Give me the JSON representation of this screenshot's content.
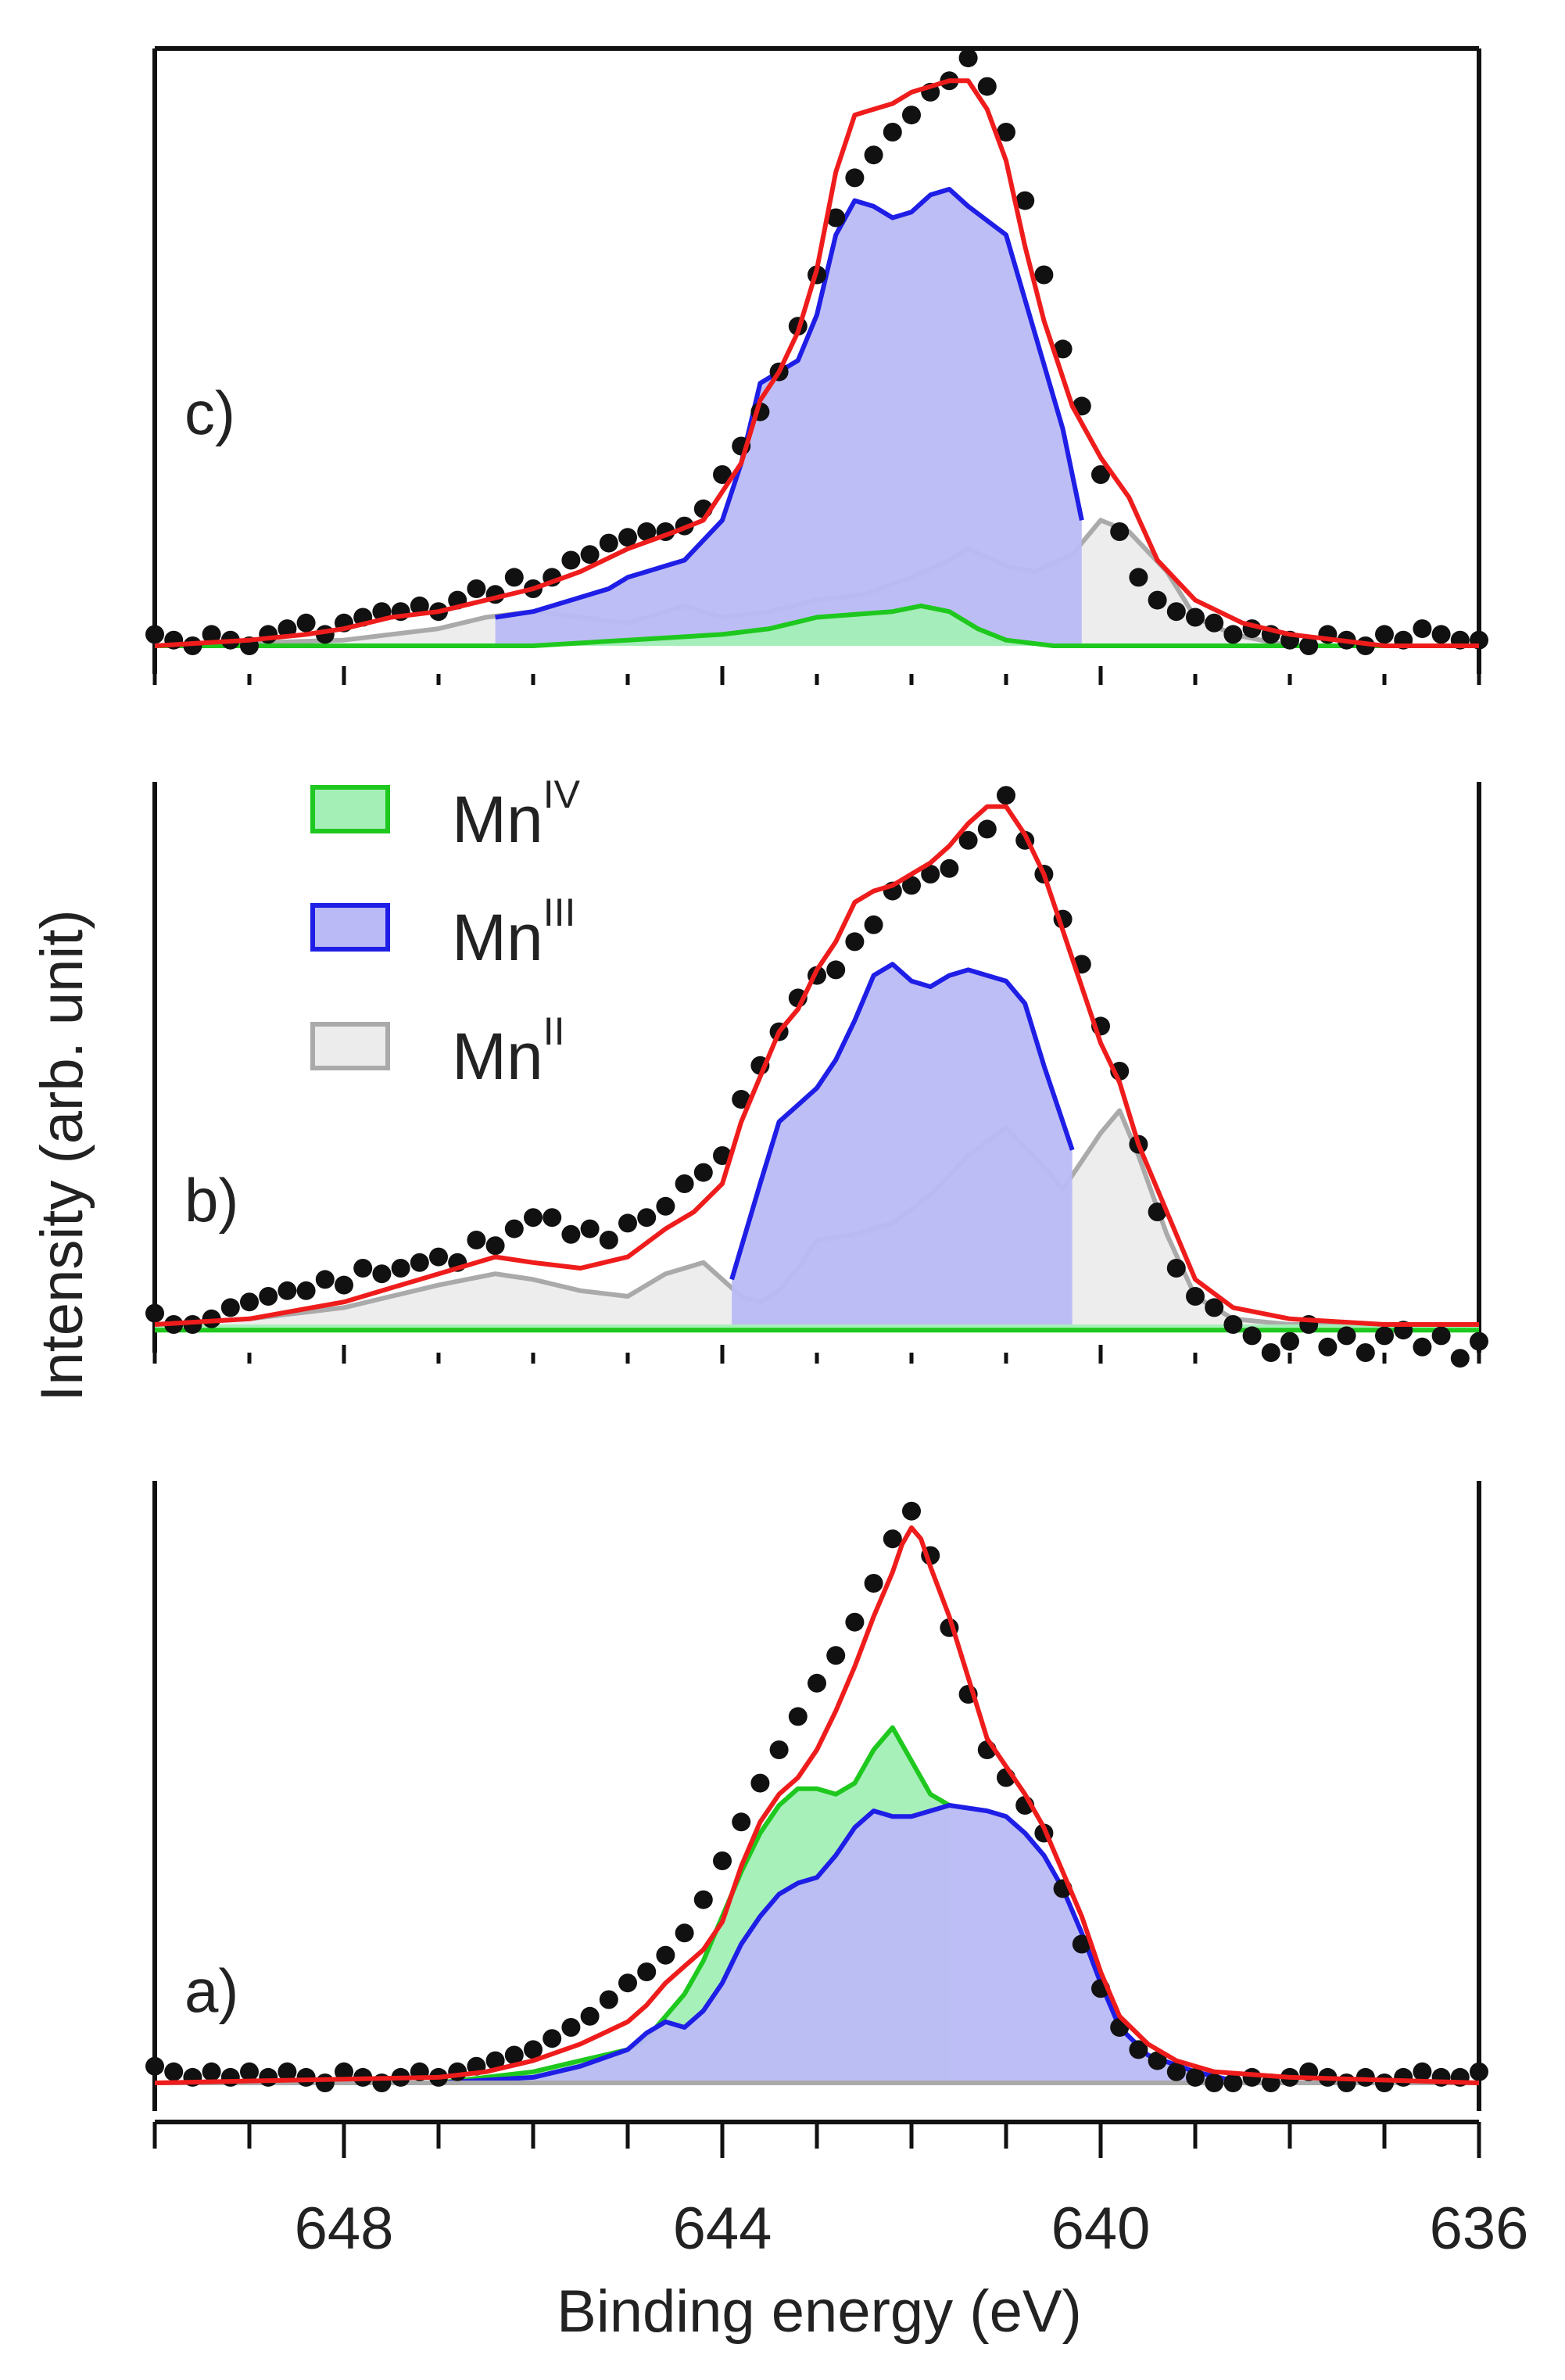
{
  "figure": {
    "ylabel": "Intensity (arb. unit)",
    "xlabel": "Binding energy (eV)"
  },
  "legend": {
    "placement": "upper-left of panel b",
    "items": [
      {
        "label": "Mn",
        "sup": "IV",
        "fill": "#a3efb6",
        "stroke": "#1ec81e"
      },
      {
        "label": "Mn",
        "sup": "III",
        "fill": "#babbf6",
        "stroke": "#1e1ee6"
      },
      {
        "label": "Mn",
        "sup": "II",
        "fill": "#ececec",
        "stroke": "#aaaaaa"
      }
    ]
  },
  "colors": {
    "data_points": "#111111",
    "fit": "#ef1c1c",
    "axis": "#111111"
  },
  "chart_data": [
    {
      "type": "line",
      "panel": "c)",
      "xlim": [
        650,
        636
      ],
      "ylim": [
        0,
        1.05
      ],
      "x_tick_values": [
        648,
        644,
        640,
        636
      ],
      "x_minor_step": 1,
      "data_points_x": [
        650.0,
        649.8,
        649.6,
        649.4,
        649.2,
        649.0,
        648.8,
        648.6,
        648.4,
        648.2,
        648.0,
        647.8,
        647.6,
        647.4,
        647.2,
        647.0,
        646.8,
        646.6,
        646.4,
        646.2,
        646.0,
        645.8,
        645.6,
        645.4,
        645.2,
        645.0,
        644.8,
        644.6,
        644.4,
        644.2,
        644.0,
        643.8,
        643.6,
        643.4,
        643.2,
        643.0,
        642.8,
        642.6,
        642.4,
        642.2,
        642.0,
        641.8,
        641.6,
        641.4,
        641.2,
        641.0,
        640.8,
        640.6,
        640.4,
        640.2,
        640.0,
        639.8,
        639.6,
        639.4,
        639.2,
        639.0,
        638.8,
        638.6,
        638.4,
        638.2,
        638.0,
        637.8,
        637.6,
        637.4,
        637.2,
        637.0,
        636.8,
        636.6,
        636.4,
        636.2,
        636.0
      ],
      "data_points_y": [
        0.02,
        0.01,
        0.0,
        0.02,
        0.01,
        0.0,
        0.02,
        0.03,
        0.04,
        0.02,
        0.04,
        0.05,
        0.06,
        0.06,
        0.07,
        0.06,
        0.08,
        0.1,
        0.09,
        0.12,
        0.1,
        0.12,
        0.15,
        0.16,
        0.18,
        0.19,
        0.2,
        0.2,
        0.21,
        0.24,
        0.3,
        0.35,
        0.41,
        0.48,
        0.56,
        0.65,
        0.75,
        0.82,
        0.86,
        0.9,
        0.93,
        0.97,
        0.99,
        1.03,
        0.98,
        0.9,
        0.78,
        0.65,
        0.52,
        0.42,
        0.3,
        0.2,
        0.12,
        0.08,
        0.06,
        0.05,
        0.04,
        0.02,
        0.03,
        0.02,
        0.01,
        0.0,
        0.02,
        0.01,
        0.0,
        0.02,
        0.01,
        0.03,
        0.02,
        0.01,
        0.01
      ],
      "series": [
        {
          "name": "Mn II",
          "x": [
            650,
            648,
            647,
            646.5,
            646,
            645.5,
            645,
            644.6,
            644.4,
            644,
            643.5,
            643,
            642.5,
            642,
            641.6,
            641.4,
            641,
            640.7,
            640.3,
            640,
            639.7,
            639.3,
            639,
            638.6,
            638,
            636
          ],
          "y": [
            0.0,
            0.01,
            0.03,
            0.05,
            0.06,
            0.05,
            0.04,
            0.06,
            0.07,
            0.05,
            0.06,
            0.08,
            0.09,
            0.12,
            0.15,
            0.17,
            0.14,
            0.13,
            0.16,
            0.22,
            0.2,
            0.13,
            0.05,
            0.02,
            0.0,
            0.0
          ]
        },
        {
          "name": "Mn III",
          "x": [
            646.4,
            646,
            645.6,
            645.2,
            645,
            644.8,
            644.6,
            644.4,
            644,
            643.8,
            643.6,
            643.4,
            643.2,
            643.0,
            642.8,
            642.6,
            642.4,
            642.2,
            642.0,
            641.8,
            641.6,
            641.4,
            641.0,
            640.7,
            640.4,
            640.2
          ],
          "y": [
            0.05,
            0.06,
            0.08,
            0.1,
            0.12,
            0.13,
            0.14,
            0.15,
            0.22,
            0.32,
            0.46,
            0.48,
            0.5,
            0.58,
            0.72,
            0.78,
            0.77,
            0.75,
            0.76,
            0.79,
            0.8,
            0.77,
            0.72,
            0.55,
            0.38,
            0.22
          ]
        },
        {
          "name": "Mn IV",
          "x": [
            650,
            648,
            646,
            645,
            644,
            643.5,
            643,
            642.6,
            642.2,
            641.9,
            641.6,
            641.3,
            641,
            640.5,
            640,
            636
          ],
          "y": [
            0.0,
            0.0,
            0.0,
            0.01,
            0.02,
            0.03,
            0.05,
            0.055,
            0.06,
            0.07,
            0.06,
            0.03,
            0.01,
            0.0,
            0.0,
            0.0
          ]
        },
        {
          "name": "Fit",
          "x": [
            650,
            649,
            648.4,
            648,
            647.5,
            647,
            646.5,
            646,
            645.5,
            645,
            644.5,
            644.2,
            644,
            643.8,
            643.6,
            643.4,
            643.2,
            643.0,
            642.8,
            642.6,
            642.4,
            642.2,
            642.0,
            641.8,
            641.6,
            641.4,
            641.2,
            641.0,
            640.8,
            640.6,
            640.3,
            640.0,
            639.7,
            639.4,
            639,
            638.5,
            638,
            637,
            636
          ],
          "y": [
            0.0,
            0.01,
            0.02,
            0.03,
            0.05,
            0.06,
            0.08,
            0.1,
            0.13,
            0.17,
            0.2,
            0.22,
            0.27,
            0.32,
            0.43,
            0.48,
            0.55,
            0.66,
            0.83,
            0.93,
            0.94,
            0.95,
            0.97,
            0.98,
            0.99,
            0.99,
            0.94,
            0.85,
            0.7,
            0.57,
            0.42,
            0.33,
            0.26,
            0.15,
            0.08,
            0.04,
            0.02,
            0.0,
            0.0
          ]
        }
      ]
    },
    {
      "type": "line",
      "panel": "b)",
      "xlim": [
        650,
        636
      ],
      "ylim": [
        0,
        1.05
      ],
      "x_tick_values": [
        648,
        644,
        640,
        636
      ],
      "x_minor_step": 1,
      "data_points_x": [
        650.0,
        649.8,
        649.6,
        649.4,
        649.2,
        649.0,
        648.8,
        648.6,
        648.4,
        648.2,
        648.0,
        647.8,
        647.6,
        647.4,
        647.2,
        647.0,
        646.8,
        646.6,
        646.4,
        646.2,
        646.0,
        645.8,
        645.6,
        645.4,
        645.2,
        645.0,
        644.8,
        644.6,
        644.4,
        644.2,
        644.0,
        643.8,
        643.6,
        643.4,
        643.2,
        643.0,
        642.8,
        642.6,
        642.4,
        642.2,
        642.0,
        641.8,
        641.6,
        641.4,
        641.2,
        641.0,
        640.8,
        640.6,
        640.4,
        640.2,
        640.0,
        639.8,
        639.6,
        639.4,
        639.2,
        639.0,
        638.8,
        638.6,
        638.4,
        638.2,
        638.0,
        637.8,
        637.6,
        637.4,
        637.2,
        637.0,
        636.8,
        636.6,
        636.4,
        636.2,
        636.0
      ],
      "data_points_y": [
        0.02,
        0.0,
        0.0,
        0.01,
        0.03,
        0.04,
        0.05,
        0.06,
        0.06,
        0.08,
        0.07,
        0.1,
        0.09,
        0.1,
        0.11,
        0.12,
        0.11,
        0.15,
        0.14,
        0.17,
        0.19,
        0.19,
        0.16,
        0.17,
        0.15,
        0.18,
        0.19,
        0.21,
        0.25,
        0.27,
        0.3,
        0.4,
        0.46,
        0.52,
        0.58,
        0.62,
        0.63,
        0.68,
        0.71,
        0.77,
        0.78,
        0.8,
        0.81,
        0.86,
        0.88,
        0.94,
        0.86,
        0.8,
        0.72,
        0.64,
        0.53,
        0.45,
        0.32,
        0.2,
        0.1,
        0.05,
        0.03,
        0.0,
        -0.02,
        -0.05,
        -0.03,
        0.0,
        -0.04,
        -0.02,
        -0.05,
        -0.02,
        -0.01,
        -0.04,
        -0.02,
        -0.06,
        -0.03
      ],
      "series": [
        {
          "name": "Mn II",
          "x": [
            650,
            649,
            648,
            647,
            646.4,
            646,
            645.5,
            645,
            644.6,
            644.2,
            644,
            643.8,
            643.6,
            643.4,
            643.2,
            643,
            642.6,
            642.2,
            641.8,
            641.4,
            641,
            640.6,
            640.4,
            640,
            639.8,
            639.6,
            639.3,
            639,
            638.6,
            638,
            636
          ],
          "y": [
            0.0,
            0.01,
            0.03,
            0.07,
            0.09,
            0.08,
            0.06,
            0.05,
            0.09,
            0.11,
            0.08,
            0.05,
            0.04,
            0.06,
            0.1,
            0.15,
            0.16,
            0.18,
            0.23,
            0.3,
            0.35,
            0.28,
            0.24,
            0.34,
            0.38,
            0.3,
            0.16,
            0.05,
            0.01,
            0.0,
            0.0
          ]
        },
        {
          "name": "Mn III",
          "x": [
            643.9,
            643.6,
            643.4,
            643.2,
            643.0,
            642.8,
            642.6,
            642.4,
            642.2,
            642.0,
            641.8,
            641.6,
            641.4,
            641.2,
            641.0,
            640.8,
            640.6,
            640.3
          ],
          "y": [
            0.08,
            0.25,
            0.36,
            0.39,
            0.42,
            0.47,
            0.54,
            0.62,
            0.64,
            0.61,
            0.6,
            0.62,
            0.63,
            0.62,
            0.61,
            0.57,
            0.46,
            0.31
          ]
        },
        {
          "name": "Mn IV",
          "x": [
            650,
            636
          ],
          "y": [
            -0.01,
            -0.01
          ]
        },
        {
          "name": "Fit",
          "x": [
            650,
            649,
            648,
            647,
            646.4,
            646,
            645.5,
            645,
            644.6,
            644.3,
            644,
            643.8,
            643.6,
            643.4,
            643.2,
            643,
            642.8,
            642.6,
            642.4,
            642.2,
            642,
            641.8,
            641.6,
            641.4,
            641.2,
            641,
            640.8,
            640.6,
            640.4,
            640.2,
            640,
            639.8,
            639.6,
            639.3,
            639,
            638.6,
            638,
            637,
            636
          ],
          "y": [
            0.0,
            0.01,
            0.04,
            0.09,
            0.12,
            0.11,
            0.1,
            0.12,
            0.17,
            0.2,
            0.25,
            0.36,
            0.44,
            0.52,
            0.56,
            0.63,
            0.68,
            0.75,
            0.77,
            0.78,
            0.8,
            0.82,
            0.85,
            0.89,
            0.92,
            0.92,
            0.87,
            0.8,
            0.7,
            0.6,
            0.5,
            0.43,
            0.32,
            0.2,
            0.08,
            0.03,
            0.01,
            0.0,
            0.0
          ]
        }
      ]
    },
    {
      "type": "line",
      "panel": "a)",
      "xlim": [
        650,
        636
      ],
      "ylim": [
        0,
        1.05
      ],
      "x_tick_values": [
        648,
        644,
        640,
        636
      ],
      "x_tick_labels": [
        "648",
        "644",
        "640",
        "636"
      ],
      "x_minor_step": 1,
      "xlabel": "Binding energy (eV)",
      "data_points_x": [
        650.0,
        649.8,
        649.6,
        649.4,
        649.2,
        649.0,
        648.8,
        648.6,
        648.4,
        648.2,
        648.0,
        647.8,
        647.6,
        647.4,
        647.2,
        647.0,
        646.8,
        646.6,
        646.4,
        646.2,
        646.0,
        645.8,
        645.6,
        645.4,
        645.2,
        645.0,
        644.8,
        644.6,
        644.4,
        644.2,
        644.0,
        643.8,
        643.6,
        643.4,
        643.2,
        643.0,
        642.8,
        642.6,
        642.4,
        642.2,
        642.0,
        641.8,
        641.6,
        641.4,
        641.2,
        641.0,
        640.8,
        640.6,
        640.4,
        640.2,
        640.0,
        639.8,
        639.6,
        639.4,
        639.2,
        639.0,
        638.8,
        638.6,
        638.4,
        638.2,
        638.0,
        637.8,
        637.6,
        637.4,
        637.2,
        637.0,
        636.8,
        636.6,
        636.4,
        636.2,
        636.0
      ],
      "data_points_y": [
        0.03,
        0.02,
        0.01,
        0.02,
        0.01,
        0.02,
        0.01,
        0.02,
        0.01,
        0.0,
        0.02,
        0.01,
        0.0,
        0.01,
        0.02,
        0.01,
        0.02,
        0.03,
        0.04,
        0.05,
        0.06,
        0.08,
        0.1,
        0.12,
        0.15,
        0.18,
        0.2,
        0.23,
        0.27,
        0.33,
        0.4,
        0.47,
        0.54,
        0.6,
        0.66,
        0.72,
        0.77,
        0.83,
        0.9,
        0.98,
        1.03,
        0.95,
        0.82,
        0.7,
        0.6,
        0.55,
        0.5,
        0.45,
        0.35,
        0.25,
        0.17,
        0.1,
        0.06,
        0.04,
        0.02,
        0.01,
        0.0,
        0.0,
        0.01,
        0.0,
        0.01,
        0.02,
        0.01,
        0.0,
        0.01,
        0.0,
        0.01,
        0.02,
        0.01,
        0.01,
        0.02
      ],
      "series": [
        {
          "name": "Mn II",
          "x": [
            650,
            636
          ],
          "y": [
            0.0,
            0.0
          ]
        },
        {
          "name": "Mn III",
          "x": [
            650,
            647,
            646,
            645.5,
            645,
            644.8,
            644.6,
            644.4,
            644.2,
            644,
            643.8,
            643.6,
            643.4,
            643.2,
            643.0,
            642.8,
            642.6,
            642.4,
            642.2,
            642.0,
            641.8,
            641.6,
            641.2,
            641.0,
            640.8,
            640.6,
            640.4,
            640.2,
            640,
            639.8,
            639.5,
            639,
            638.5,
            638,
            636
          ],
          "y": [
            0.0,
            0.0,
            0.01,
            0.03,
            0.06,
            0.09,
            0.11,
            0.1,
            0.13,
            0.18,
            0.25,
            0.3,
            0.34,
            0.36,
            0.37,
            0.41,
            0.46,
            0.49,
            0.48,
            0.48,
            0.49,
            0.5,
            0.49,
            0.48,
            0.45,
            0.41,
            0.35,
            0.27,
            0.18,
            0.1,
            0.05,
            0.02,
            0.0,
            0.0,
            0.0
          ]
        },
        {
          "name": "Mn IV",
          "x": [
            650,
            647,
            646,
            645.5,
            645,
            644.8,
            644.6,
            644.4,
            644.2,
            644,
            643.8,
            643.6,
            643.4,
            643.2,
            643.0,
            642.8,
            642.6,
            642.4,
            642.2,
            642.0,
            641.8,
            641.6
          ],
          "y": [
            0.0,
            0.0,
            0.02,
            0.04,
            0.06,
            0.08,
            0.12,
            0.16,
            0.22,
            0.3,
            0.38,
            0.45,
            0.5,
            0.53,
            0.53,
            0.52,
            0.54,
            0.6,
            0.64,
            0.58,
            0.52,
            0.5
          ]
        },
        {
          "name": "Fit",
          "x": [
            650,
            647,
            646.5,
            646,
            645.5,
            645,
            644.8,
            644.6,
            644.4,
            644.2,
            644,
            643.8,
            643.6,
            643.4,
            643.2,
            643,
            642.8,
            642.6,
            642.4,
            642.2,
            642.1,
            642,
            641.9,
            641.8,
            641.6,
            641.4,
            641.2,
            641,
            640.8,
            640.6,
            640.4,
            640.2,
            640,
            639.8,
            639.5,
            639.2,
            638.8,
            638,
            636
          ],
          "y": [
            0.0,
            0.01,
            0.02,
            0.04,
            0.07,
            0.11,
            0.14,
            0.18,
            0.21,
            0.24,
            0.29,
            0.39,
            0.47,
            0.52,
            0.55,
            0.6,
            0.67,
            0.75,
            0.84,
            0.92,
            0.97,
            1.0,
            0.98,
            0.93,
            0.84,
            0.73,
            0.62,
            0.57,
            0.52,
            0.46,
            0.38,
            0.3,
            0.2,
            0.12,
            0.07,
            0.04,
            0.02,
            0.01,
            0.0
          ]
        }
      ]
    }
  ]
}
